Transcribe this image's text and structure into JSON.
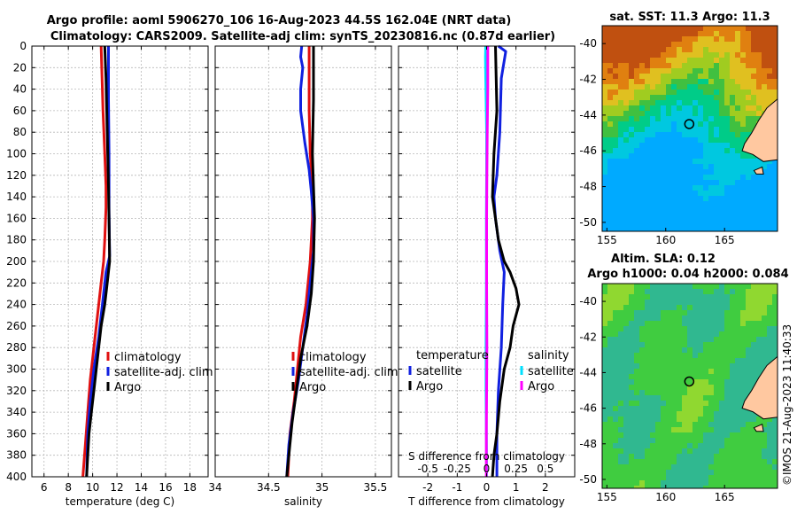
{
  "title_line1": "Argo profile: aoml 5906270_106 16-Aug-2023 44.5S 162.04E (NRT data)",
  "title_line2": "Climatology: CARS2009. Satellite-adj clim: synTS_20230816.nc (0.87d earlier)",
  "watermark": "©IMOS 21-Aug-2023 11:40:33",
  "chart_data": [
    {
      "id": "temperature",
      "type": "line",
      "xlabel": "temperature (deg C)",
      "xlim": [
        5,
        19.5
      ],
      "xticks": [
        6,
        8,
        10,
        12,
        14,
        16,
        18
      ],
      "ylim": [
        400,
        0
      ],
      "yticks": [
        0,
        20,
        40,
        60,
        80,
        100,
        120,
        140,
        160,
        180,
        200,
        220,
        240,
        260,
        280,
        300,
        320,
        340,
        360,
        380,
        400
      ],
      "legend": [
        "climatology",
        "satellite-adj. clim",
        "Argo"
      ],
      "series": [
        {
          "name": "climatology",
          "color": "#e01010",
          "points": [
            [
              10.7,
              0
            ],
            [
              10.75,
              20
            ],
            [
              10.85,
              60
            ],
            [
              11.0,
              100
            ],
            [
              11.1,
              130
            ],
            [
              11.1,
              150
            ],
            [
              11.0,
              180
            ],
            [
              10.9,
              200
            ],
            [
              10.7,
              220
            ],
            [
              10.4,
              250
            ],
            [
              10.1,
              280
            ],
            [
              9.8,
              310
            ],
            [
              9.6,
              340
            ],
            [
              9.4,
              370
            ],
            [
              9.2,
              400
            ]
          ]
        },
        {
          "name": "satellite-adj. clim",
          "color": "#1020e0",
          "points": [
            [
              11.3,
              0
            ],
            [
              11.3,
              50
            ],
            [
              11.35,
              100
            ],
            [
              11.35,
              150
            ],
            [
              11.4,
              195
            ],
            [
              11.1,
              210
            ],
            [
              10.8,
              240
            ],
            [
              10.5,
              270
            ],
            [
              10.1,
              300
            ],
            [
              9.8,
              330
            ],
            [
              9.6,
              360
            ],
            [
              9.5,
              400
            ]
          ]
        },
        {
          "name": "Argo",
          "color": "#000000",
          "points": [
            [
              11.0,
              0
            ],
            [
              11.1,
              30
            ],
            [
              11.2,
              80
            ],
            [
              11.3,
              130
            ],
            [
              11.35,
              160
            ],
            [
              11.4,
              200
            ],
            [
              11.2,
              220
            ],
            [
              11.0,
              240
            ],
            [
              10.7,
              260
            ],
            [
              10.4,
              290
            ],
            [
              10.1,
              320
            ],
            [
              9.9,
              340
            ],
            [
              9.7,
              360
            ],
            [
              9.6,
              380
            ],
            [
              9.5,
              400
            ]
          ]
        }
      ]
    },
    {
      "id": "salinity",
      "type": "line",
      "xlabel": "salinity",
      "xlim": [
        34,
        35.65
      ],
      "xticks": [
        34,
        34.5,
        35,
        35.5
      ],
      "ylim": [
        400,
        0
      ],
      "legend": [
        "climatology",
        "satellite-adj. clim",
        "Argo"
      ],
      "series": [
        {
          "name": "climatology",
          "color": "#e01010",
          "points": [
            [
              34.88,
              0
            ],
            [
              34.88,
              60
            ],
            [
              34.89,
              100
            ],
            [
              34.91,
              130
            ],
            [
              34.91,
              160
            ],
            [
              34.89,
              200
            ],
            [
              34.85,
              240
            ],
            [
              34.8,
              270
            ],
            [
              34.77,
              300
            ],
            [
              34.74,
              330
            ],
            [
              34.7,
              360
            ],
            [
              34.68,
              400
            ]
          ]
        },
        {
          "name": "satellite-adj. clim",
          "color": "#1020e0",
          "points": [
            [
              34.81,
              0
            ],
            [
              34.8,
              10
            ],
            [
              34.82,
              20
            ],
            [
              34.8,
              40
            ],
            [
              34.8,
              60
            ],
            [
              34.84,
              90
            ],
            [
              34.88,
              115
            ],
            [
              34.9,
              135
            ],
            [
              34.92,
              160
            ],
            [
              34.92,
              190
            ],
            [
              34.89,
              220
            ],
            [
              34.86,
              250
            ],
            [
              34.82,
              280
            ],
            [
              34.78,
              310
            ],
            [
              34.73,
              340
            ],
            [
              34.69,
              370
            ],
            [
              34.67,
              400
            ]
          ]
        },
        {
          "name": "Argo",
          "color": "#000000",
          "points": [
            [
              34.92,
              0
            ],
            [
              34.92,
              50
            ],
            [
              34.91,
              100
            ],
            [
              34.92,
              130
            ],
            [
              34.93,
              160
            ],
            [
              34.92,
              200
            ],
            [
              34.9,
              230
            ],
            [
              34.86,
              260
            ],
            [
              34.8,
              290
            ],
            [
              34.76,
              320
            ],
            [
              34.72,
              350
            ],
            [
              34.69,
              380
            ],
            [
              34.67,
              400
            ]
          ]
        }
      ]
    },
    {
      "id": "difference",
      "type": "line",
      "xlabel": "T difference from climatology",
      "xlim": [
        -3,
        3
      ],
      "xticks": [
        -2,
        -1,
        0,
        1,
        2
      ],
      "xtick_labels": [
        "-2",
        "-1",
        "0",
        "1",
        "2"
      ],
      "xlabel2": "S difference from climatology",
      "x2lim": [
        -0.75,
        0.75
      ],
      "x2ticks": [
        -0.5,
        -0.25,
        0,
        0.25,
        0.5
      ],
      "x2tick_labels": [
        "-0.5",
        "-0.25",
        "0",
        "0.25",
        "0.5"
      ],
      "ylim": [
        400,
        0
      ],
      "legend_left_title": "temperature",
      "legend_left": [
        "satellite",
        "Argo"
      ],
      "legend_right_title": "salinity",
      "legend_right": [
        "satellite",
        "Argo"
      ],
      "series": [
        {
          "name": "T satellite",
          "color": "#1020e0",
          "points": [
            [
              0.4,
              0
            ],
            [
              0.65,
              5
            ],
            [
              0.5,
              30
            ],
            [
              0.45,
              80
            ],
            [
              0.35,
              120
            ],
            [
              0.25,
              140
            ],
            [
              0.3,
              160
            ],
            [
              0.45,
              190
            ],
            [
              0.6,
              210
            ],
            [
              0.55,
              240
            ],
            [
              0.5,
              280
            ],
            [
              0.4,
              320
            ],
            [
              0.35,
              360
            ],
            [
              0.35,
              400
            ]
          ]
        },
        {
          "name": "T Argo",
          "color": "#000000",
          "points": [
            [
              0.3,
              0
            ],
            [
              0.35,
              60
            ],
            [
              0.25,
              100
            ],
            [
              0.2,
              140
            ],
            [
              0.3,
              160
            ],
            [
              0.4,
              180
            ],
            [
              0.6,
              200
            ],
            [
              0.8,
              210
            ],
            [
              1.0,
              225
            ],
            [
              1.1,
              240
            ],
            [
              0.9,
              260
            ],
            [
              0.8,
              280
            ],
            [
              0.6,
              300
            ],
            [
              0.45,
              330
            ],
            [
              0.35,
              360
            ],
            [
              0.25,
              380
            ],
            [
              0.2,
              400
            ]
          ]
        },
        {
          "name": "S satellite",
          "color": "#00e0ff",
          "points": [
            [
              -0.03,
              0
            ],
            [
              -0.04,
              10
            ],
            [
              -0.03,
              30
            ],
            [
              0.0,
              80
            ],
            [
              0.0,
              120
            ],
            [
              -0.01,
              160
            ],
            [
              -0.01,
              220
            ],
            [
              -0.02,
              280
            ],
            [
              -0.02,
              320
            ],
            [
              -0.01,
              360
            ],
            [
              0.0,
              400
            ]
          ]
        },
        {
          "name": "S Argo",
          "color": "#ff00ff",
          "points": [
            [
              0.04,
              0
            ],
            [
              0.04,
              40
            ],
            [
              0.02,
              80
            ],
            [
              0.01,
              120
            ],
            [
              0.0,
              160
            ],
            [
              0.0,
              220
            ],
            [
              0.01,
              280
            ],
            [
              0.0,
              320
            ],
            [
              -0.01,
              360
            ],
            [
              -0.01,
              400
            ]
          ]
        }
      ]
    },
    {
      "id": "sst_map",
      "type": "heatmap",
      "title": "sat. SST: 11.3 Argo: 11.3",
      "xlim": [
        154.6,
        169.5
      ],
      "ylim": [
        -50.5,
        -39
      ],
      "xticks": [
        155,
        160,
        165
      ],
      "yticks": [
        -40,
        -42,
        -44,
        -46,
        -48,
        -50
      ],
      "ytick_labels": [
        "-40",
        "-42",
        "-44",
        "-46",
        "-48",
        "-50"
      ],
      "marker": [
        162.0,
        -44.5
      ]
    },
    {
      "id": "sla_map",
      "type": "heatmap",
      "title_line1": "Altim. SLA: 0.12",
      "title_line2": "Argo h1000: 0.04 h2000: 0.084",
      "xlim": [
        154.6,
        169.5
      ],
      "ylim": [
        -50.5,
        -39
      ],
      "xticks": [
        155,
        160,
        165
      ],
      "yticks": [
        -40,
        -42,
        -44,
        -46,
        -48,
        -50
      ],
      "ytick_labels": [
        "-40",
        "-42",
        "-44",
        "-46",
        "-48",
        "-50"
      ],
      "marker": [
        162.0,
        -44.5
      ]
    }
  ]
}
